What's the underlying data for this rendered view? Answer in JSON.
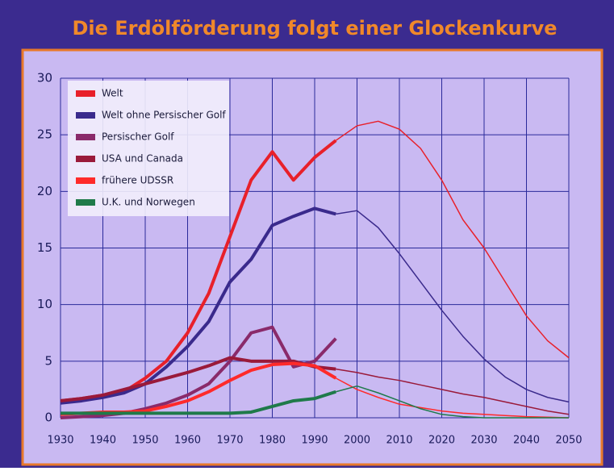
{
  "chart_data": {
    "type": "line",
    "title": "Die Erdölförderung folgt einer Glockenkurve",
    "x": [
      1930,
      1935,
      1940,
      1945,
      1950,
      1955,
      1960,
      1965,
      1970,
      1975,
      1980,
      1985,
      1990,
      1995,
      2000,
      2005,
      2010,
      2015,
      2020,
      2025,
      2030,
      2035,
      2040,
      2045,
      2050
    ],
    "xlim": [
      1930,
      2050
    ],
    "xticks": [
      1930,
      1940,
      1950,
      1960,
      1970,
      1980,
      1990,
      2000,
      2010,
      2020,
      2030,
      2040,
      2050
    ],
    "ylim": [
      0,
      30
    ],
    "yticks": [
      0,
      5,
      10,
      15,
      20,
      25,
      30
    ],
    "grid": true,
    "legend": "upper-left",
    "series": [
      {
        "name": "Welt",
        "color": "#e8202a",
        "values": [
          1.5,
          1.7,
          2.0,
          2.3,
          3.5,
          5,
          7.5,
          11,
          16,
          21,
          23.5,
          21,
          23,
          24.5,
          null,
          null,
          null,
          null,
          null,
          null,
          null,
          null,
          null,
          null,
          null
        ],
        "projection": [
          null,
          null,
          null,
          null,
          null,
          null,
          null,
          null,
          null,
          null,
          null,
          null,
          null,
          24.5,
          25.8,
          26.2,
          25.5,
          23.8,
          21,
          17.5,
          15,
          12,
          9,
          6.8,
          5.3
        ]
      },
      {
        "name": "Welt ohne Persischer Golf",
        "color": "#3a2a8c",
        "values": [
          1.3,
          1.5,
          1.8,
          2.2,
          3,
          4.5,
          6.3,
          8.5,
          12,
          14,
          17,
          17.8,
          18.5,
          18,
          null,
          null,
          null,
          null,
          null,
          null,
          null,
          null,
          null,
          null,
          null
        ],
        "projection": [
          null,
          null,
          null,
          null,
          null,
          null,
          null,
          null,
          null,
          null,
          null,
          null,
          null,
          18,
          18.3,
          16.8,
          14.5,
          12,
          9.5,
          7.2,
          5.2,
          3.6,
          2.5,
          1.8,
          1.4
        ]
      },
      {
        "name": "Persischer Golf",
        "color": "#8a2a6a",
        "values": [
          0,
          0.1,
          0.2,
          0.4,
          0.8,
          1.3,
          2,
          3,
          5,
          7.5,
          8,
          4.5,
          5,
          7,
          null,
          null,
          null,
          null,
          null,
          null,
          null,
          null,
          null,
          null,
          null
        ],
        "projection": [
          null,
          null,
          null,
          null,
          null,
          null,
          null,
          null,
          null,
          null,
          null,
          null,
          null,
          null,
          null,
          null,
          null,
          null,
          null,
          null,
          null,
          null,
          null,
          null,
          null
        ]
      },
      {
        "name": "USA und Canada",
        "color": "#9a1a3a",
        "values": [
          1.5,
          1.7,
          2,
          2.5,
          3,
          3.5,
          4,
          4.6,
          5.3,
          5,
          5,
          5,
          4.5,
          4.3,
          null,
          null,
          null,
          null,
          null,
          null,
          null,
          null,
          null,
          null,
          null
        ],
        "projection": [
          null,
          null,
          null,
          null,
          null,
          null,
          null,
          null,
          null,
          null,
          null,
          null,
          null,
          4.3,
          4,
          3.6,
          3.3,
          2.9,
          2.5,
          2.1,
          1.8,
          1.4,
          1,
          0.6,
          0.3
        ]
      },
      {
        "name": "frühere UDSSR",
        "color": "#ff2a2a",
        "values": [
          0.3,
          0.4,
          0.5,
          0.5,
          0.6,
          1,
          1.5,
          2.3,
          3.3,
          4.2,
          4.7,
          4.8,
          4.6,
          3.5,
          null,
          null,
          null,
          null,
          null,
          null,
          null,
          null,
          null,
          null,
          null
        ],
        "projection": [
          null,
          null,
          null,
          null,
          null,
          null,
          null,
          null,
          null,
          null,
          null,
          null,
          null,
          3.5,
          2.5,
          1.8,
          1.2,
          0.9,
          0.6,
          0.4,
          0.3,
          0.2,
          0.1,
          0.05,
          0
        ]
      },
      {
        "name": "U.K. und Norwegen",
        "color": "#1f7a4a",
        "values": [
          0.4,
          0.4,
          0.4,
          0.4,
          0.4,
          0.4,
          0.4,
          0.4,
          0.4,
          0.5,
          1,
          1.5,
          1.7,
          2.3,
          null,
          null,
          null,
          null,
          null,
          null,
          null,
          null,
          null,
          null,
          null
        ],
        "projection": [
          null,
          null,
          null,
          null,
          null,
          null,
          null,
          null,
          null,
          null,
          null,
          null,
          null,
          2.3,
          2.8,
          2.2,
          1.5,
          0.8,
          0.3,
          0.1,
          0,
          0,
          0,
          0,
          0
        ]
      }
    ]
  }
}
